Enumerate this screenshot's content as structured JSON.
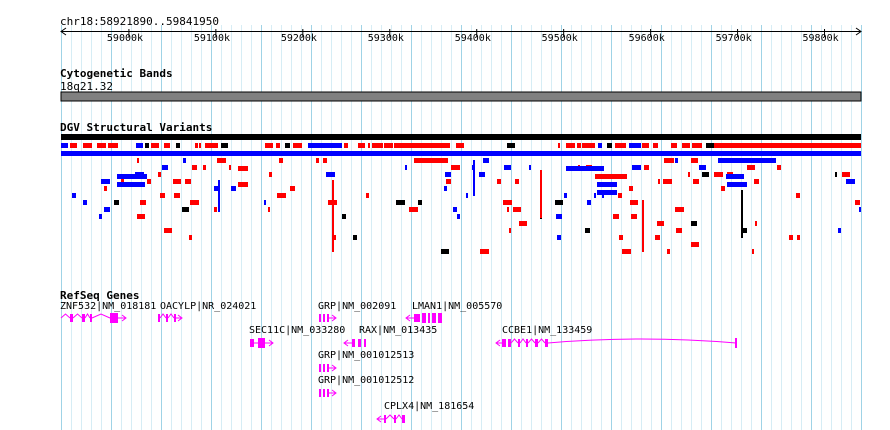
{
  "location": "chr18:58921890..59841950",
  "ruler": {
    "start": 58921890,
    "end": 59841950,
    "ticks": [
      {
        "pos": 59000000,
        "label": "59000k"
      },
      {
        "pos": 59100000,
        "label": "59100k"
      },
      {
        "pos": 59200000,
        "label": "59200k"
      },
      {
        "pos": 59300000,
        "label": "59300k"
      },
      {
        "pos": 59400000,
        "label": "59400k"
      },
      {
        "pos": 59500000,
        "label": "59500k"
      },
      {
        "pos": 59600000,
        "label": "59600k"
      },
      {
        "pos": 59700000,
        "label": "59700k"
      },
      {
        "pos": 59800000,
        "label": "59800k"
      }
    ]
  },
  "tracks": {
    "cytobands": {
      "title": "Cytogenetic Bands",
      "band": "18q21.32",
      "color": "#808080"
    },
    "dgv": {
      "title": "DGV Structural Variants",
      "gain_color": "#ff0000",
      "loss_color": "#0000ff",
      "other_color": "#000000"
    },
    "refseq": {
      "title": "RefSeq Genes",
      "color": "#ff00ff"
    }
  },
  "genes": [
    {
      "label": "ZNF532|NM_018181",
      "strand": "+"
    },
    {
      "label": "OACYLP|NR_024021",
      "strand": "+"
    },
    {
      "label": "GRP|NM_002091",
      "strand": "+"
    },
    {
      "label": "LMAN1|NM_005570",
      "strand": "-"
    },
    {
      "label": "SEC11C|NM_033280",
      "strand": "+"
    },
    {
      "label": "RAX|NM_013435",
      "strand": "-"
    },
    {
      "label": "CCBE1|NM_133459",
      "strand": "-"
    },
    {
      "label": "GRP|NM_001012513",
      "strand": "+"
    },
    {
      "label": "GRP|NM_001012512",
      "strand": "+"
    },
    {
      "label": "CPLX4|NM_181654",
      "strand": "-"
    }
  ]
}
